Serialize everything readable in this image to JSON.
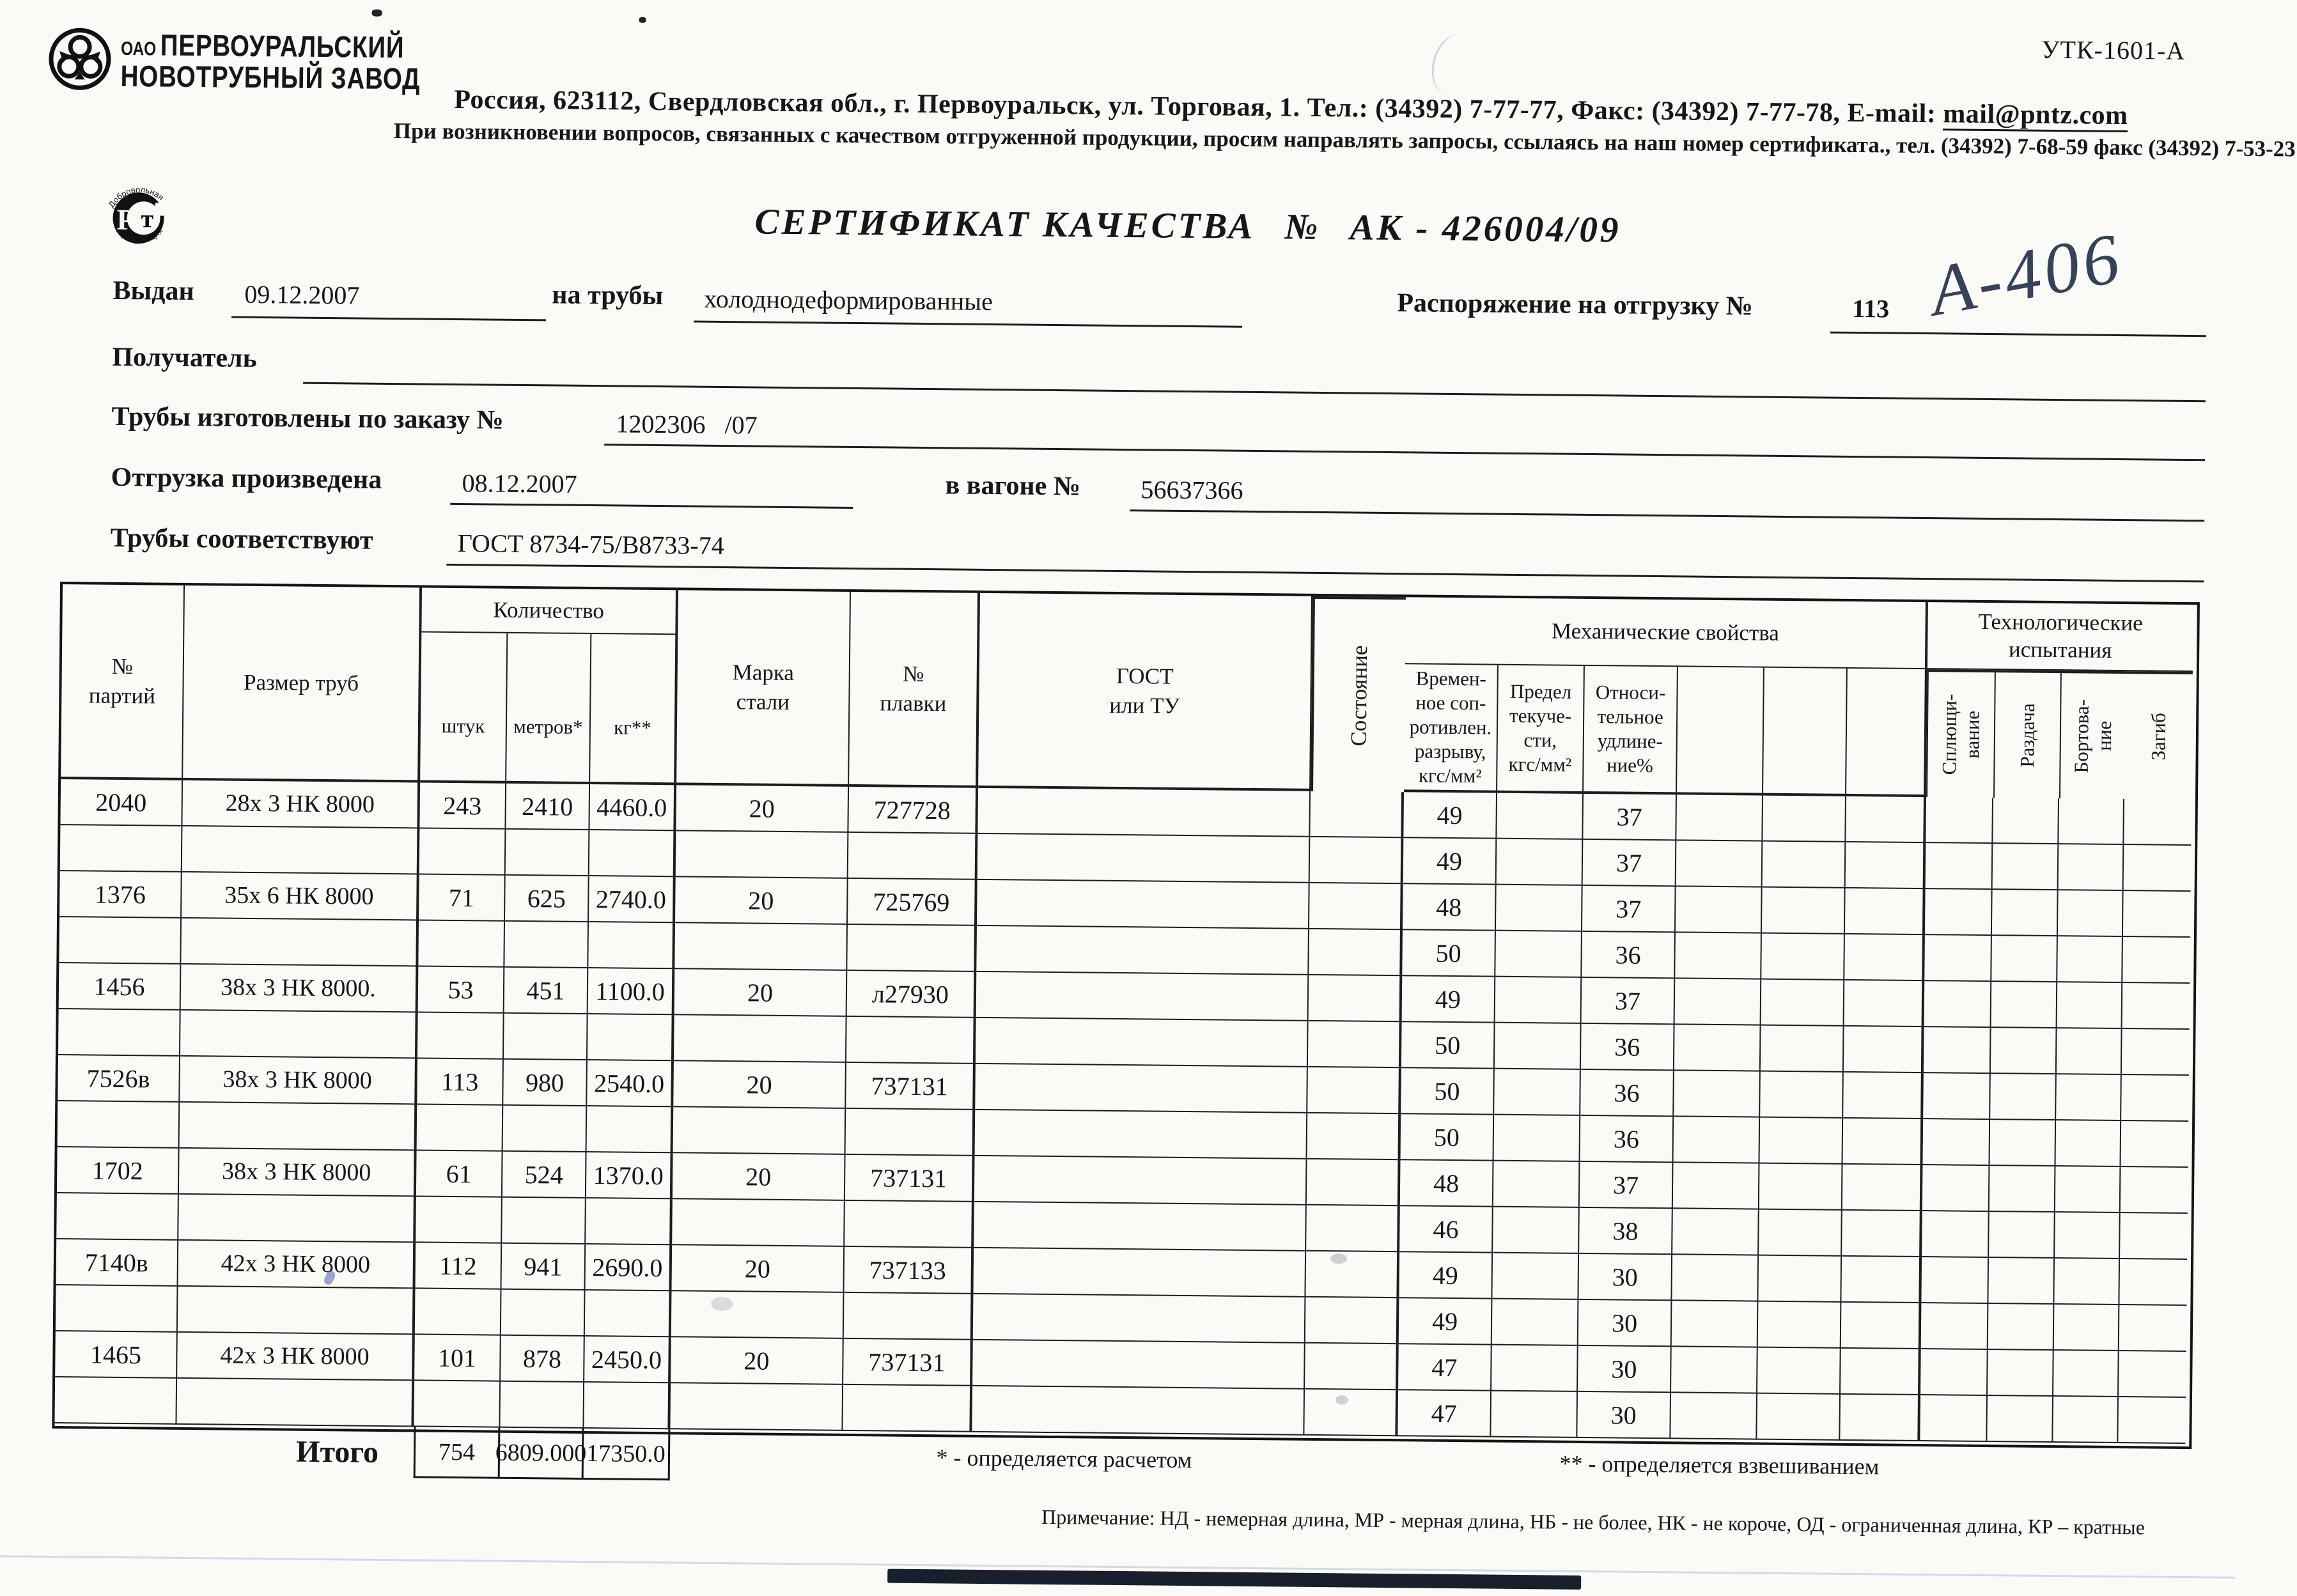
{
  "meta": {
    "form_code": "УТК-1601-А",
    "handwritten_mark": "А-406"
  },
  "header": {
    "org_prefix": "ОАО",
    "org_line1": "ПЕРВОУРАЛЬСКИЙ",
    "org_line2": "НОВОТРУБНЫЙ  ЗАВОД",
    "address_line": "Россия, 623112, Свердловская обл., г. Первоуральск, ул. Торговая, 1. Тел.: (34392) 7-77-77, Факс: (34392) 7-77-78,  E-mail: ",
    "email": "mail@pntz.com",
    "notice_line": "При возникновении вопросов, связанных с качеством отгруженной продукции, просим направлять запросы, ссылаясь на наш номер сертификата., тел. (34392) 7-68-59 факс (34392) 7-53-23",
    "rst_top": "Добровольная",
    "rst_bottom": "сертификация",
    "rst_p": "Р",
    "rst_t": "т"
  },
  "title": {
    "text": "СЕРТИФИКАТ КАЧЕСТВА",
    "number_label": "№",
    "number": "АК - 426004/09"
  },
  "fields": {
    "issued_label": "Выдан",
    "issued_value": "09.12.2007",
    "pipes_label": "на трубы",
    "pipes_value": "холоднодеформированные",
    "order_ship_label": "Распоряжение на отгрузку №",
    "order_ship_value": "113",
    "recipient_label": "Получатель",
    "made_label": "Трубы изготовлены по заказу №",
    "made_value": "1202306   /07",
    "shipped_label": "Отгрузка произведена",
    "shipped_value": "08.12.2007",
    "wagon_label": "в вагоне №",
    "wagon_value": "56637366",
    "conform_label": "Трубы соответствуют",
    "conform_value": "ГОСТ 8734-75/В8733-74"
  },
  "table": {
    "headers": {
      "batch": "№\nпартий",
      "size": "Размер труб",
      "quantity": "Количество",
      "pcs": "штук",
      "meters": "метров*",
      "kg": "кг**",
      "steel": "Марка\nстали",
      "melt": "№\nплавки",
      "gost": "ГОСТ\nили ТУ",
      "state": "Состояние",
      "mech": "Механические свойства",
      "mech1": "Времен-\nное соп-\nротивлен.\nразрыву,\nкгс/мм²",
      "mech2": "Предел\nтекуче-\nсти,\nкгс/мм²",
      "mech3": "Относи-\nтельное\nудлине-\nние%",
      "tech": "Технологические\nиспытания",
      "tech1": "Сплющи-\nвание",
      "tech2": "Раздача",
      "tech3": "Бортова-\nние",
      "tech4": "Загиб"
    },
    "batches": [
      {
        "no": "2040",
        "size": "28х 3 НК 8000",
        "pcs": "243",
        "m": "2410",
        "kg": "4460.0",
        "steel": "20",
        "melt": "727728",
        "mech": [
          [
            "49",
            "37"
          ],
          [
            "49",
            "37"
          ]
        ]
      },
      {
        "no": "1376",
        "size": "35х 6 НК 8000",
        "pcs": "71",
        "m": "625",
        "kg": "2740.0",
        "steel": "20",
        "melt": "725769",
        "mech": [
          [
            "48",
            "37"
          ],
          [
            "50",
            "36"
          ]
        ]
      },
      {
        "no": "1456",
        "size": "38х 3 НК 8000.",
        "pcs": "53",
        "m": "451",
        "kg": "1100.0",
        "steel": "20",
        "melt": "л27930",
        "mech": [
          [
            "49",
            "37"
          ],
          [
            "50",
            "36"
          ]
        ]
      },
      {
        "no": "7526в",
        "size": "38х 3 НК 8000",
        "pcs": "113",
        "m": "980",
        "kg": "2540.0",
        "steel": "20",
        "melt": "737131",
        "mech": [
          [
            "50",
            "36"
          ],
          [
            "50",
            "36"
          ]
        ]
      },
      {
        "no": "1702",
        "size": "38х 3 НК 8000",
        "pcs": "61",
        "m": "524",
        "kg": "1370.0",
        "steel": "20",
        "melt": "737131",
        "mech": [
          [
            "48",
            "37"
          ],
          [
            "46",
            "38"
          ]
        ]
      },
      {
        "no": "7140в",
        "size": "42х 3 НК 8000",
        "pcs": "112",
        "m": "941",
        "kg": "2690.0",
        "steel": "20",
        "melt": "737133",
        "mech": [
          [
            "49",
            "30"
          ],
          [
            "49",
            "30"
          ]
        ]
      },
      {
        "no": "1465",
        "size": "42х 3 НК 8000",
        "pcs": "101",
        "m": "878",
        "kg": "2450.0",
        "steel": "20",
        "melt": "737131",
        "mech": [
          [
            "47",
            "30"
          ],
          [
            "47",
            "30"
          ]
        ]
      }
    ],
    "totals": {
      "label": "Итого",
      "pcs": "754",
      "m": "6809.000",
      "kg": "17350.0"
    }
  },
  "footnotes": {
    "star": "* - определяется расчетом",
    "dstar": "** - определяется взвешиванием",
    "note": "Примечание: НД - немерная длина, МР - мерная длина, НБ - не более, НК - не короче, ОД - ограниченная длина, КР – кратные"
  }
}
